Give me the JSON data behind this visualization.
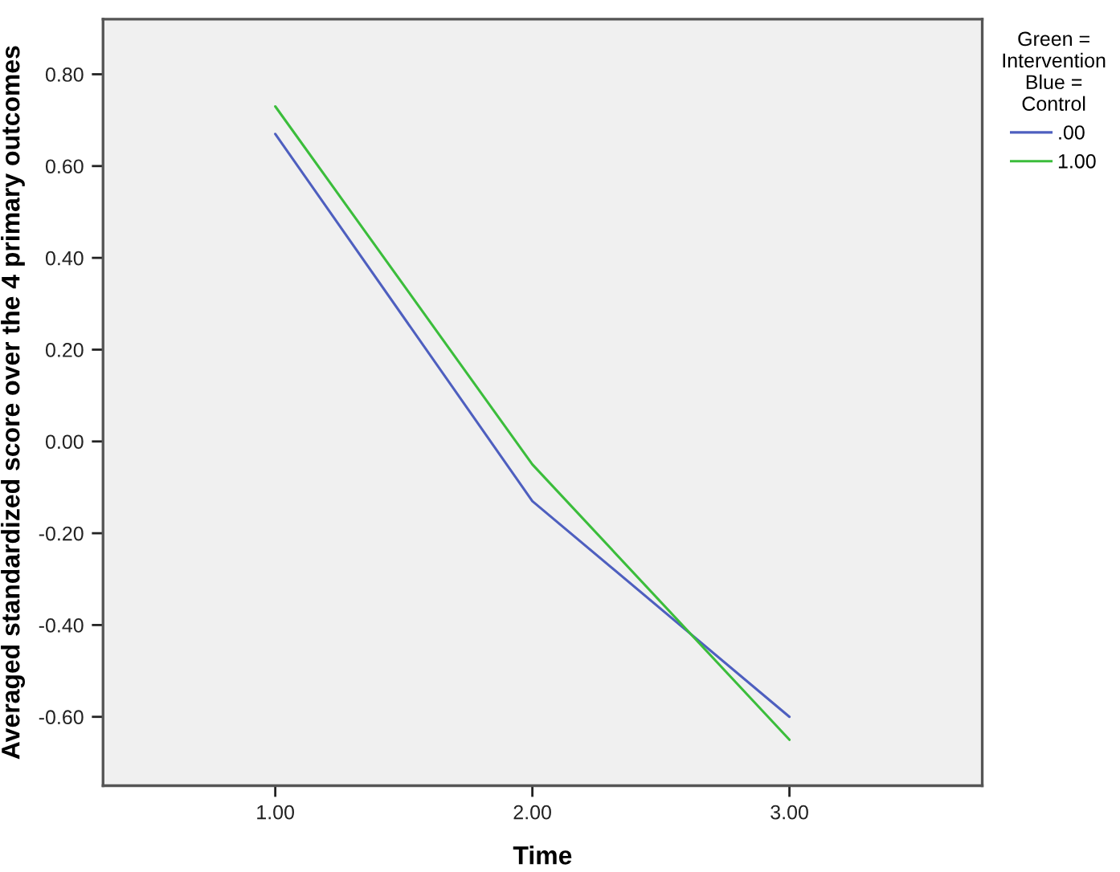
{
  "chart_data": {
    "type": "line",
    "xlabel": "Time",
    "ylabel": "Averaged standardized score over the 4 primary outcomes",
    "legend_title": "Green =\nIntervention\nBlue =\nControl",
    "legend": "right",
    "line_style": "solid",
    "x": [
      1,
      2,
      3
    ],
    "series": [
      {
        "name": ".00",
        "color": "#4e5fbf",
        "values": [
          0.67,
          -0.13,
          -0.6
        ]
      },
      {
        "name": "1.00",
        "color": "#3bbd3b",
        "values": [
          0.73,
          -0.05,
          -0.65
        ]
      }
    ],
    "xlim": [
      0.33,
      3.75
    ],
    "xticks": [
      {
        "value": 1,
        "label": "1.00"
      },
      {
        "value": 2,
        "label": "2.00"
      },
      {
        "value": 3,
        "label": "3.00"
      }
    ],
    "ylim": [
      -0.75,
      0.92
    ],
    "yticks": [
      {
        "value": -0.6,
        "label": "-0.60"
      },
      {
        "value": -0.4,
        "label": "-0.40"
      },
      {
        "value": -0.2,
        "label": "-0.20"
      },
      {
        "value": 0,
        "label": "0.00"
      },
      {
        "value": 0.2,
        "label": "0.20"
      },
      {
        "value": 0.4,
        "label": "0.40"
      },
      {
        "value": 0.6,
        "label": "0.60"
      },
      {
        "value": 0.8,
        "label": "0.80"
      }
    ]
  }
}
